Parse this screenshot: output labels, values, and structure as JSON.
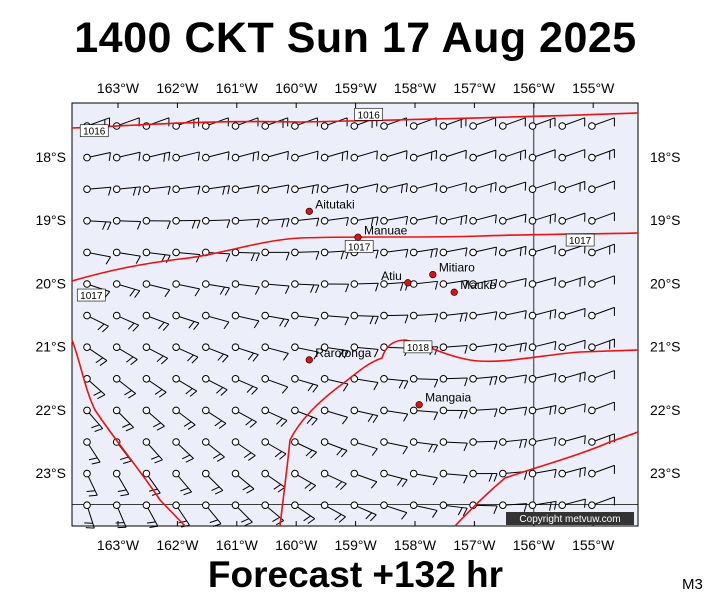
{
  "header": {
    "title": "1400 CKT Sun 17 Aug 2025"
  },
  "footer": {
    "forecast": "Forecast +132 hr",
    "model": "M3"
  },
  "map": {
    "lon_labels": [
      "163°W",
      "162°W",
      "161°W",
      "160°W",
      "159°W",
      "158°W",
      "157°W",
      "156°W",
      "155°W"
    ],
    "lat_labels": [
      "18°S",
      "19°S",
      "20°S",
      "21°S",
      "22°S",
      "23°S"
    ],
    "places": [
      {
        "name": "Aitutaki",
        "lon": -159.78,
        "lat": -18.86
      },
      {
        "name": "Manuae",
        "lon": -158.96,
        "lat": -19.27
      },
      {
        "name": "Mitiaro",
        "lon": -157.7,
        "lat": -19.86
      },
      {
        "name": "Atiu",
        "lon": -158.12,
        "lat": -19.99
      },
      {
        "name": "Mauke",
        "lon": -157.34,
        "lat": -20.14
      },
      {
        "name": "Rarotonga",
        "lon": -159.78,
        "lat": -21.21
      },
      {
        "name": "Mangaia",
        "lon": -157.93,
        "lat": -21.92
      }
    ],
    "isobars": [
      {
        "label": "1016",
        "lon": -158.78,
        "lat": -17.34
      },
      {
        "label": "1016",
        "lon": -163.4,
        "lat": -17.6
      },
      {
        "label": "1017",
        "lon": -158.94,
        "lat": -19.43
      },
      {
        "label": "1017",
        "lon": -155.22,
        "lat": -19.33
      },
      {
        "label": "1017",
        "lon": -163.45,
        "lat": -20.2
      },
      {
        "label": "1018",
        "lon": -157.95,
        "lat": -21.02
      }
    ],
    "copyright": "Copyright metvuw.com",
    "colors": {
      "land": "#eceefa",
      "isobar": "#ee1111",
      "place": "#dd1111"
    }
  }
}
